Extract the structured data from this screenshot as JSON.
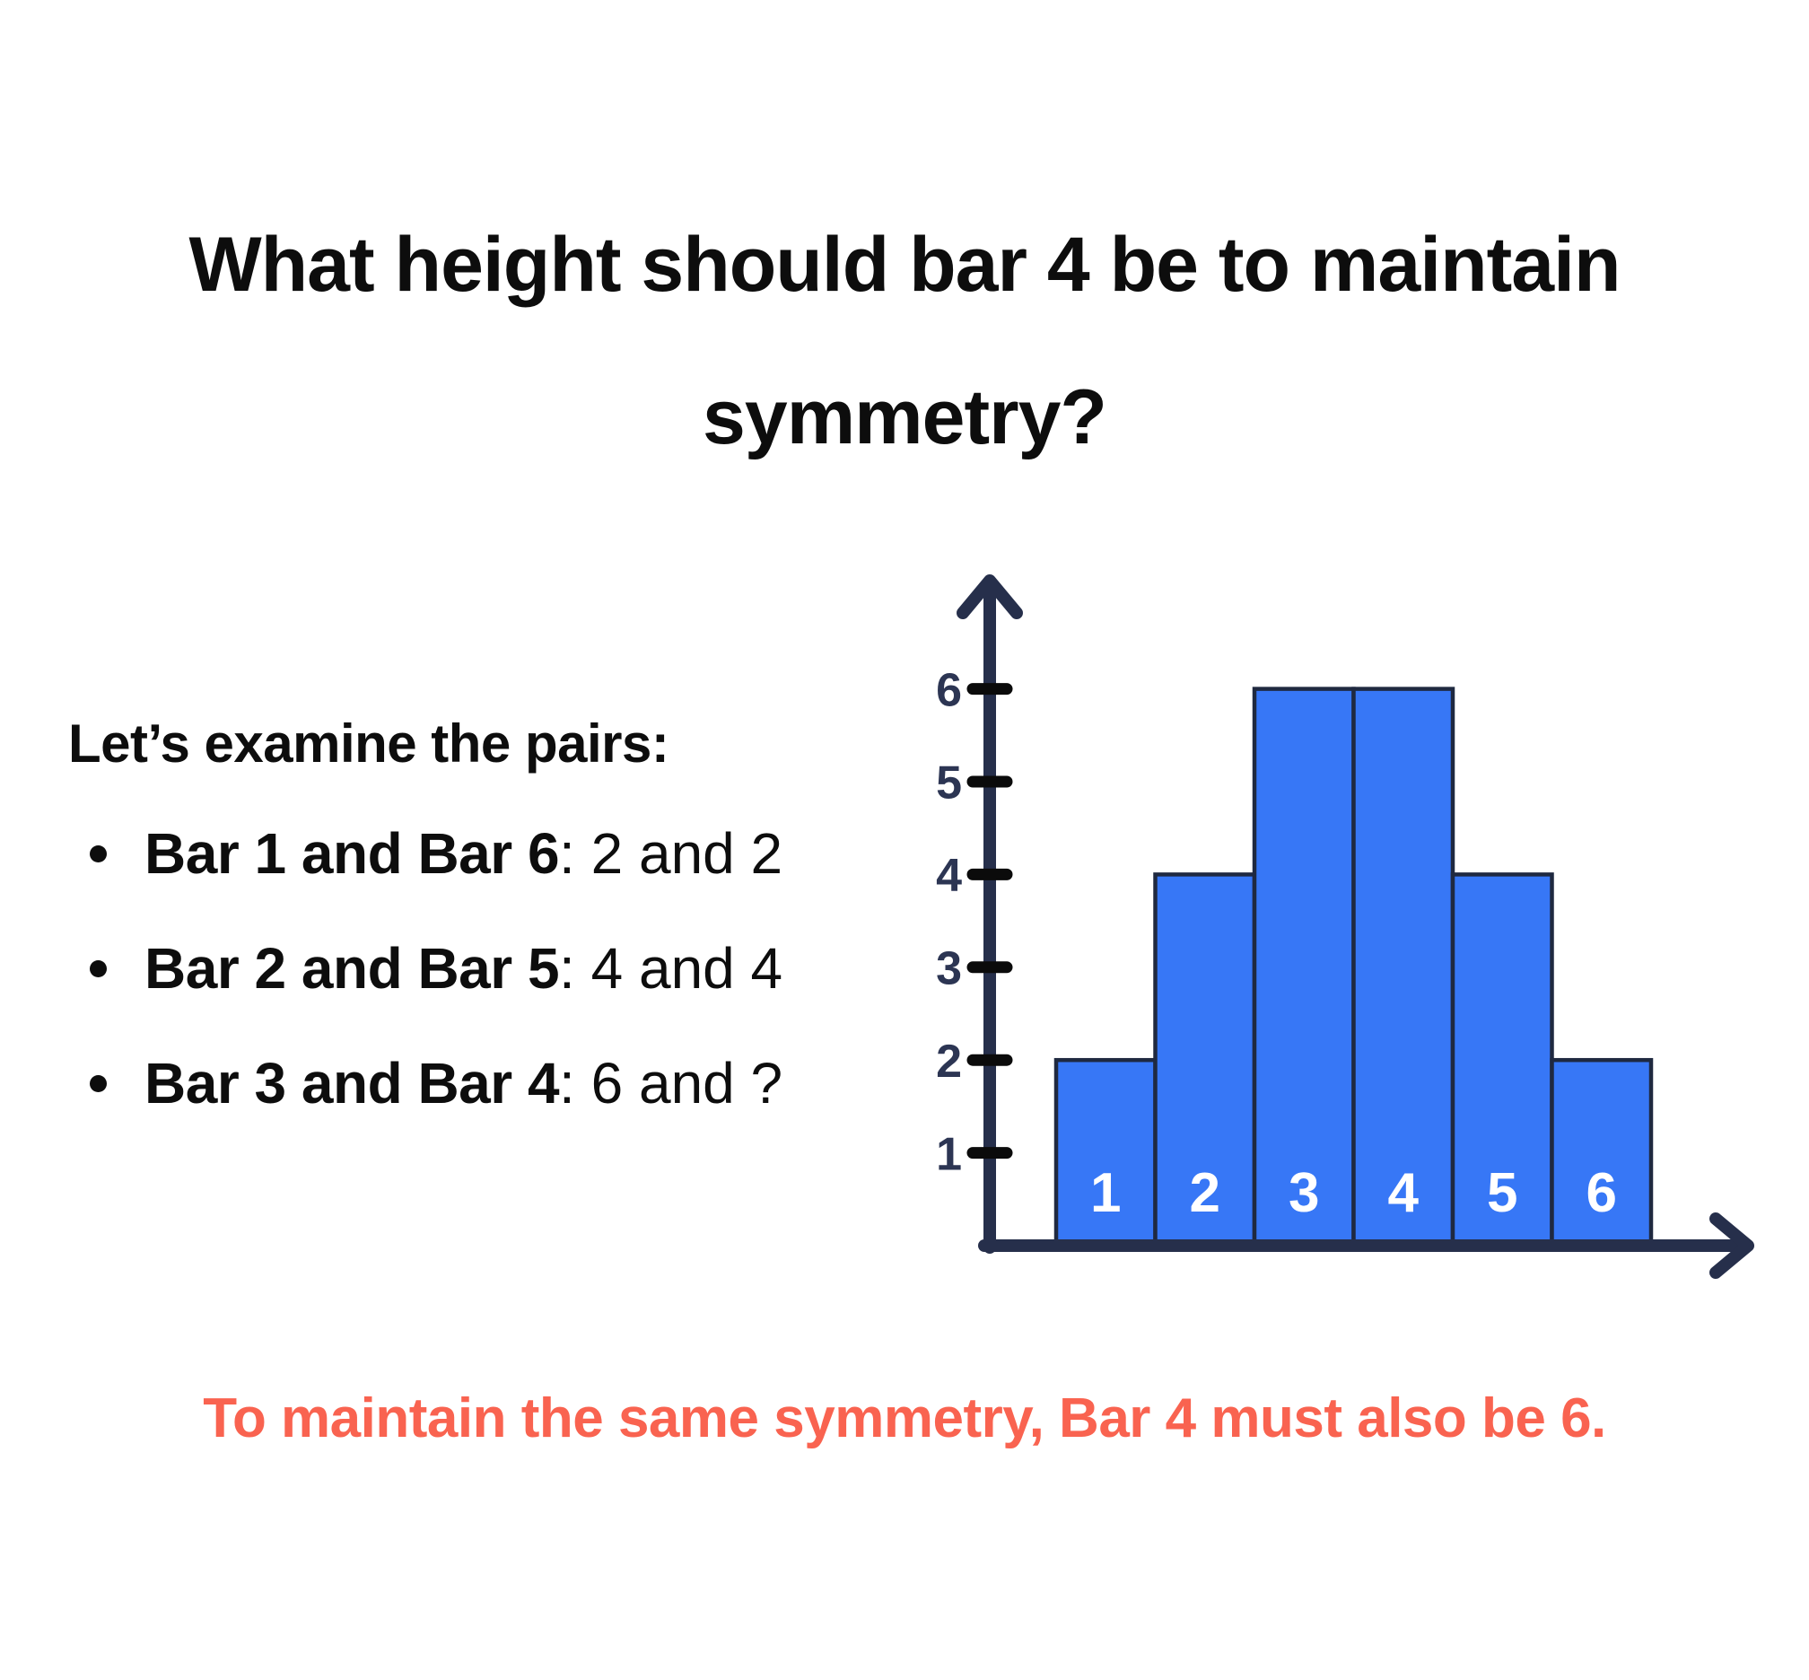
{
  "page": {
    "background": "#FFFFFF",
    "title_lines": [
      "What height should bar 4 be to maintain",
      "symmetry?"
    ]
  },
  "explainer": {
    "heading": "Let’s examine the pairs:",
    "bullets": [
      {
        "bold": "Bar 1 and Bar 6",
        "rest": ": 2 and 2"
      },
      {
        "bold": "Bar 2 and Bar 5",
        "rest": ": 4 and 4"
      },
      {
        "bold": "Bar 3 and Bar 4",
        "rest": ": 6 and ?"
      }
    ]
  },
  "conclusion": {
    "text": "To maintain the same symmetry, Bar 4 must also be 6.",
    "color": "#F96350"
  },
  "colors": {
    "ink": "#0D0D0D",
    "bar_blue": "#3777F6",
    "bar_border_navy": "#1F2940",
    "axis_navy": "#262F4B",
    "tick_black": "#0B0B0B",
    "tick_label_navy": "#2C3553",
    "bar_label_white": "#FFFFFF",
    "accent_red": "#F96350"
  },
  "chart_data": {
    "type": "bar",
    "categories": [
      "1",
      "2",
      "3",
      "4",
      "5",
      "6"
    ],
    "values": [
      2,
      4,
      6,
      6,
      4,
      2
    ],
    "bar_labels": [
      "1",
      "2",
      "3",
      "4",
      "5",
      "6"
    ],
    "yticks": [
      1,
      2,
      3,
      4,
      5,
      6
    ],
    "ylim": [
      0,
      7
    ],
    "title": "",
    "xlabel": "",
    "ylabel": "",
    "grid": false,
    "legend": false,
    "bar_color": "#3777F6",
    "bar_border_color": "#1F2940",
    "axis_color": "#262F4B",
    "tick_color": "#0B0B0B",
    "tick_label_color": "#2C3553",
    "bar_label_color": "#FFFFFF"
  }
}
